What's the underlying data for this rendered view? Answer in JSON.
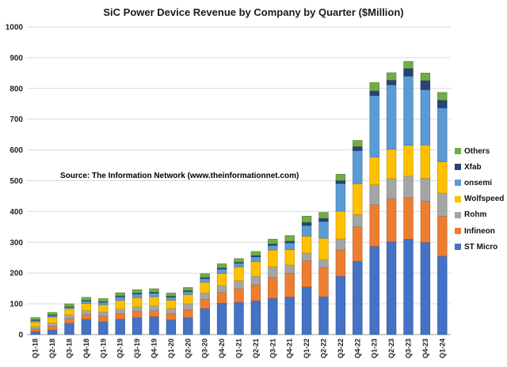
{
  "chart_data": {
    "type": "bar",
    "stacked": true,
    "title": "SiC Power Device Revenue by Company by Quarter ($Million)",
    "annotation": "Source: The Information Network (www.theinformationnet.com)",
    "categories": [
      "Q1-18",
      "Q2-18",
      "Q3-18",
      "Q4-18",
      "Q1-19",
      "Q2-19",
      "Q3-19",
      "Q4-19",
      "Q1-20",
      "Q2-20",
      "Q3-20",
      "Q4-20",
      "Q1-21",
      "Q2-21",
      "Q3-21",
      "Q4-21",
      "Q1-22",
      "Q2-22",
      "Q3-22",
      "Q4-22",
      "Q1-23",
      "Q2-23",
      "Q3-23",
      "Q4-23",
      "Q1-24"
    ],
    "ylim": [
      0,
      1000
    ],
    "yticks": [
      0,
      100,
      200,
      300,
      400,
      500,
      600,
      700,
      800,
      900,
      1000
    ],
    "grid": true,
    "legend_position": "right",
    "series": [
      {
        "name": "ST Micro",
        "color": "#4472C4",
        "values": [
          10,
          15,
          37,
          50,
          42,
          50,
          55,
          58,
          48,
          55,
          85,
          102,
          105,
          110,
          118,
          122,
          155,
          123,
          190,
          238,
          287,
          302,
          310,
          300,
          255
        ]
      },
      {
        "name": "Infineon",
        "color": "#ED7D31",
        "values": [
          8,
          12,
          15,
          15,
          18,
          18,
          20,
          20,
          20,
          25,
          30,
          35,
          45,
          52,
          67,
          77,
          85,
          95,
          85,
          112,
          135,
          140,
          135,
          133,
          130
        ]
      },
      {
        "name": "Rohm",
        "color": "#A5A5A5",
        "values": [
          8,
          10,
          12,
          13,
          14,
          15,
          15,
          15,
          17,
          20,
          20,
          22,
          25,
          28,
          35,
          27,
          25,
          25,
          36,
          40,
          65,
          65,
          70,
          75,
          75
        ]
      },
      {
        "name": "Wolfspeed",
        "color": "#FFC000",
        "values": [
          15,
          20,
          20,
          23,
          23,
          28,
          30,
          30,
          27,
          30,
          35,
          40,
          45,
          47,
          55,
          50,
          55,
          70,
          90,
          100,
          90,
          95,
          100,
          108,
          102
        ]
      },
      {
        "name": "onsemi",
        "color": "#5B9BD5",
        "values": [
          5,
          5,
          5,
          8,
          8,
          12,
          12,
          12,
          10,
          10,
          12,
          14,
          12,
          16,
          15,
          22,
          35,
          55,
          90,
          108,
          200,
          210,
          225,
          180,
          175
        ]
      },
      {
        "name": "Xfab",
        "color": "#264478",
        "values": [
          2,
          2,
          2,
          2,
          2,
          3,
          3,
          3,
          3,
          3,
          4,
          4,
          3,
          4,
          5,
          6,
          10,
          10,
          10,
          13,
          15,
          15,
          25,
          30,
          25
        ]
      },
      {
        "name": "Others",
        "color": "#70AD47",
        "values": [
          7,
          8,
          9,
          10,
          10,
          10,
          11,
          11,
          10,
          10,
          12,
          13,
          12,
          13,
          15,
          18,
          20,
          19,
          20,
          20,
          27,
          24,
          23,
          24,
          25
        ]
      }
    ]
  }
}
